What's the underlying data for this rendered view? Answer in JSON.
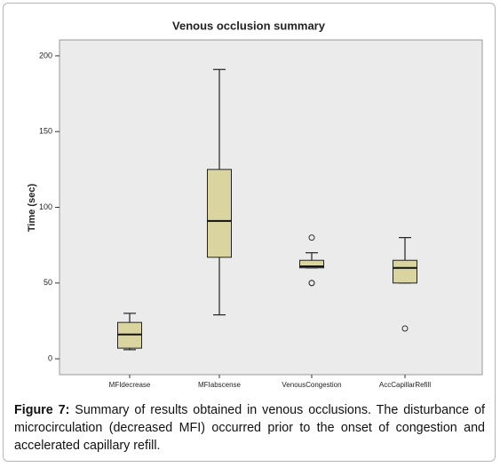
{
  "chart_data": {
    "type": "box",
    "title": "Venous occlusion summary",
    "y_label": "Time (sec)",
    "categories": [
      "MFIdecrease",
      "MFIabscense",
      "VenousCongestion",
      "AccCapillarRefill"
    ],
    "boxes": [
      {
        "min": 6,
        "q1": 7,
        "median": 16,
        "q3": 24,
        "max": 30,
        "outliers": []
      },
      {
        "min": 29,
        "q1": 67,
        "median": 91,
        "q3": 125,
        "max": 191,
        "outliers": []
      },
      {
        "min": 60,
        "q1": 60,
        "median": 61,
        "q3": 65,
        "max": 70,
        "outliers": [
          80,
          50,
          50
        ]
      },
      {
        "min": 50,
        "q1": 50,
        "median": 60,
        "q3": 65,
        "max": 80,
        "outliers": [
          20
        ]
      }
    ],
    "color": "#d9d4a0",
    "ylim": [
      -10.5,
      210.5
    ],
    "yticks": [
      0,
      50,
      100,
      150,
      200
    ]
  },
  "caption": {
    "label": "Figure 7:",
    "text": " Summary of results obtained in venous occlusions. The disturbance of microcirculation (decreased MFI) occurred prior to the onset of congestion and accelerated capillary refill."
  }
}
